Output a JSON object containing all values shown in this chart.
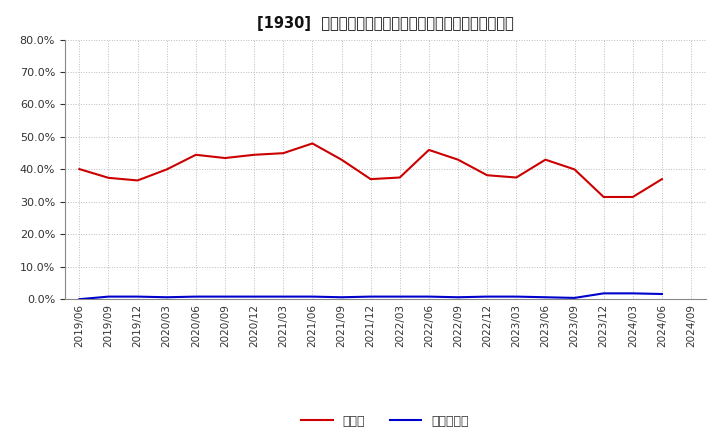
{
  "title": "[1930]  現預金、有利子負債の総資産に対する比率の推移",
  "cash_dates": [
    "2019/06",
    "2019/09",
    "2019/12",
    "2020/03",
    "2020/06",
    "2020/09",
    "2020/12",
    "2021/03",
    "2021/06",
    "2021/09",
    "2021/12",
    "2022/03",
    "2022/06",
    "2022/09",
    "2022/12",
    "2023/03",
    "2023/06",
    "2023/09",
    "2023/12",
    "2024/03",
    "2024/06",
    "2024/09"
  ],
  "cash_values": [
    0.401,
    0.374,
    0.366,
    0.4,
    0.445,
    0.435,
    0.445,
    0.45,
    0.48,
    0.43,
    0.37,
    0.375,
    0.46,
    0.43,
    0.382,
    0.375,
    0.43,
    0.4,
    0.315,
    0.315,
    0.37,
    null
  ],
  "debt_values": [
    0.0,
    0.008,
    0.008,
    0.006,
    0.008,
    0.008,
    0.008,
    0.008,
    0.008,
    0.006,
    0.008,
    0.008,
    0.008,
    0.006,
    0.008,
    0.008,
    0.006,
    0.004,
    0.018,
    0.018,
    0.016,
    null
  ],
  "cash_color": "#cc0000",
  "debt_color": "#0000cc",
  "ylim": [
    0.0,
    0.8
  ],
  "yticks": [
    0.0,
    0.1,
    0.2,
    0.3,
    0.4,
    0.5,
    0.6,
    0.7,
    0.8
  ],
  "legend_cash": "現預金",
  "legend_debt": "有利子負債",
  "bg_color": "#ffffff",
  "plot_bg_color": "#ffffff",
  "grid_color": "#bbbbbb"
}
